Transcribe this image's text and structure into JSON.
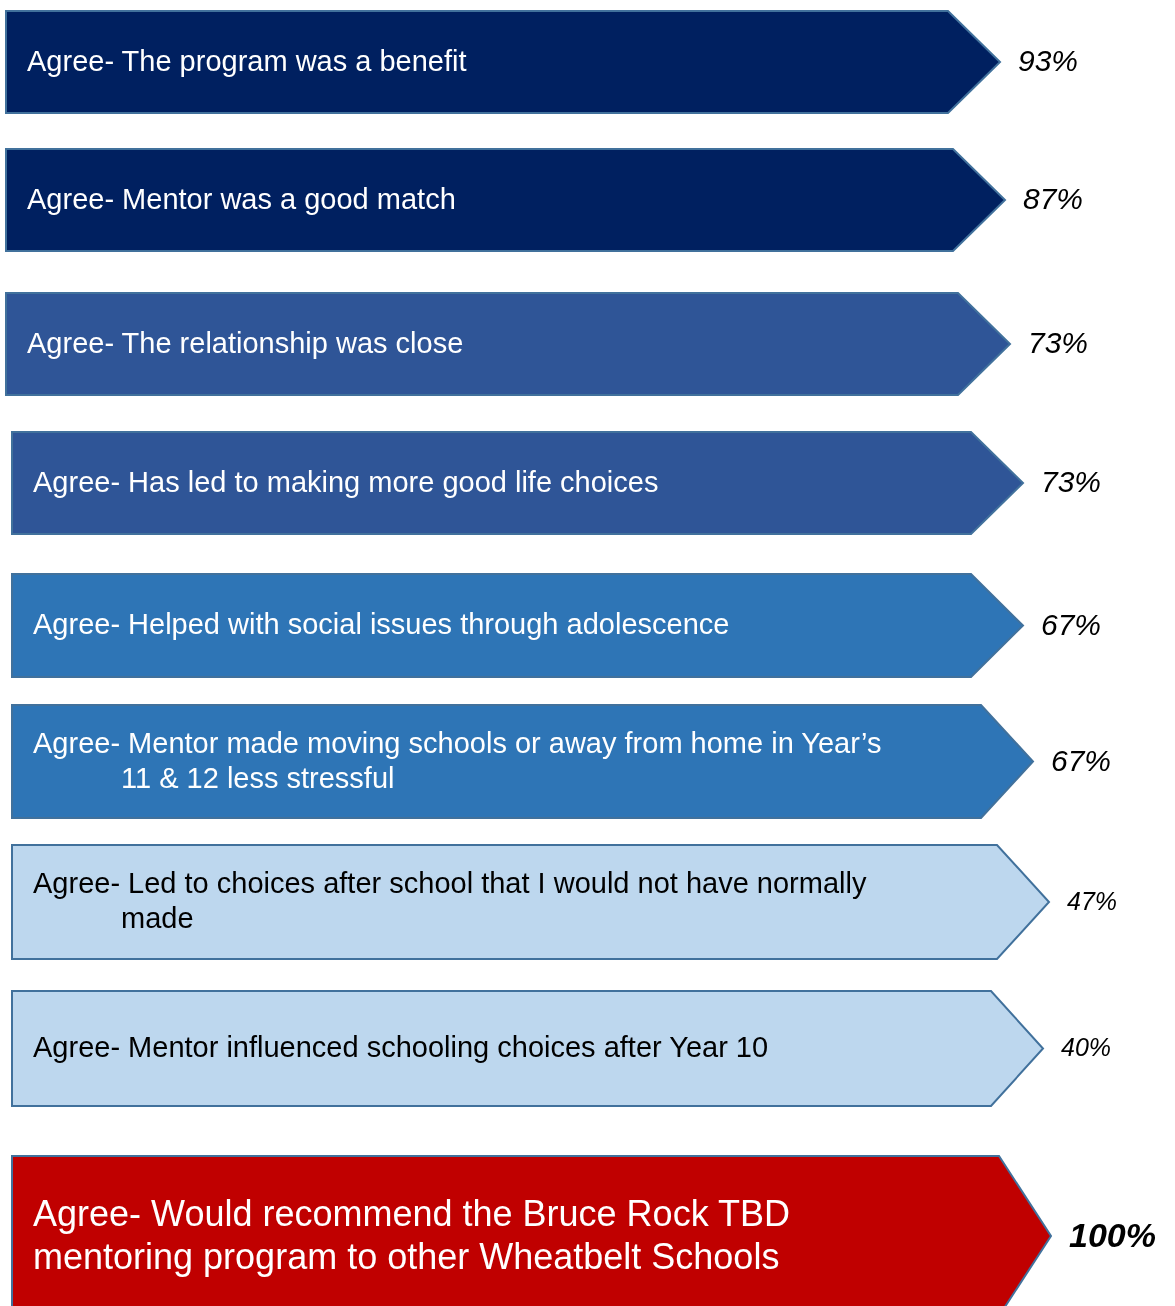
{
  "chart_data": {
    "type": "other",
    "categories": [
      "Agree- The program was a benefit",
      "Agree- Mentor was a good match",
      "Agree- The relationship was close",
      "Agree- Has led to making more good life choices",
      "Agree- Helped with social issues through adolescence",
      "Agree- Mentor made moving schools or away from home in Year’s 11 & 12 less stressful",
      "Agree- Led to choices after school that I would not have normally made",
      "Agree- Mentor influenced schooling choices after Year 10",
      "Agree- Would recommend the Bruce Rock TBD mentoring program to other Wheatbelt Schools"
    ],
    "values": [
      93,
      87,
      73,
      73,
      67,
      67,
      47,
      40,
      100
    ],
    "value_labels": [
      "93%",
      "87%",
      "73%",
      "73%",
      "67%",
      "67%",
      "47%",
      "40%",
      "100%"
    ],
    "colors": [
      "#002060",
      "#002060",
      "#2f5597",
      "#2f5597",
      "#2e75b6",
      "#2e75b6",
      "#bdd7ee",
      "#bdd7ee",
      "#c00000"
    ]
  }
}
